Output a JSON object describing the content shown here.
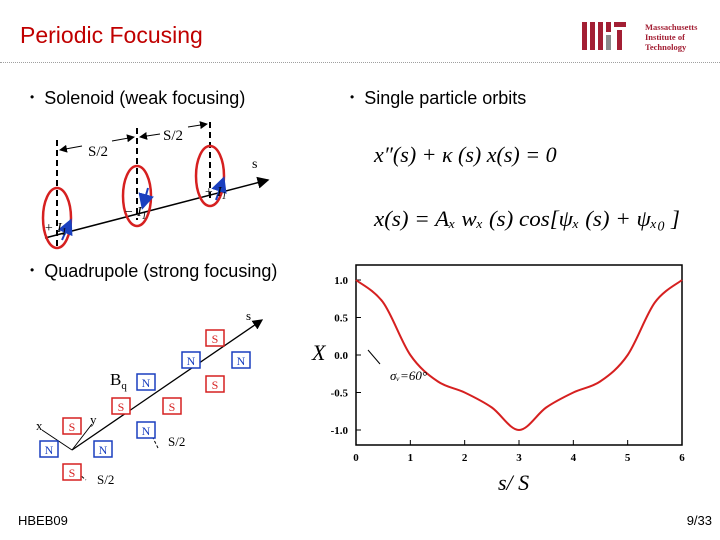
{
  "slide": {
    "title": "Periodic Focusing",
    "footer_left": "HBEB09",
    "page_number": "9/33"
  },
  "logo": {
    "lines": [
      "Massachusetts",
      "Institute of",
      "Technology"
    ],
    "accent_color": "#a31f34"
  },
  "bullets": {
    "solenoid": "Solenoid (weak focusing)",
    "orbits": "Single particle orbits",
    "quadrupole": "Quadrupole (strong focusing)"
  },
  "solenoid_diagram": {
    "half_period_left": "S/2",
    "half_period_right": "S/2",
    "axis_label": "s",
    "current_plus_left": "+ I",
    "current_plus_left_sub": "1",
    "current_minus": "− I",
    "current_minus_sub": "1",
    "current_plus_right": "+ I",
    "current_plus_right_sub": "1"
  },
  "equations": {
    "eq1": "x″(s) + κ (s) x(s) = 0",
    "eq2": "x(s) = Aₓ wₓ (s) cos[ψₓ (s) + ψₓ₀ ]"
  },
  "quad_diagram": {
    "axis_s": "s",
    "axis_x": "x",
    "axis_y": "y",
    "field_label": "B",
    "field_sub": "q",
    "half_period_lower": "S/2",
    "half_period_upper": "S/2",
    "poles": {
      "n": "N",
      "s": "S"
    }
  },
  "chart_data": {
    "type": "line",
    "xlabel": "s/ S",
    "ylabel": "X",
    "xlim": [
      0,
      6
    ],
    "ylim": [
      -1.2,
      1.2
    ],
    "xticks": [
      "0",
      "1",
      "2",
      "3",
      "4",
      "5",
      "6"
    ],
    "yticks": [
      "1.0",
      "0.5",
      "0.0",
      "-0.5",
      "-1.0"
    ],
    "annotation": "σᵥ=60°",
    "grid": false,
    "series": [
      {
        "color": "#d62020",
        "x": [
          0,
          0.5,
          1.0,
          1.5,
          2.0,
          2.5,
          3.0,
          3.5,
          4.0,
          4.5,
          5.0,
          5.5,
          6.0
        ],
        "y": [
          1.0,
          0.7,
          0.0,
          -0.35,
          -0.5,
          -0.7,
          -1.0,
          -0.7,
          -0.5,
          -0.35,
          0.0,
          0.7,
          1.0
        ]
      }
    ]
  }
}
